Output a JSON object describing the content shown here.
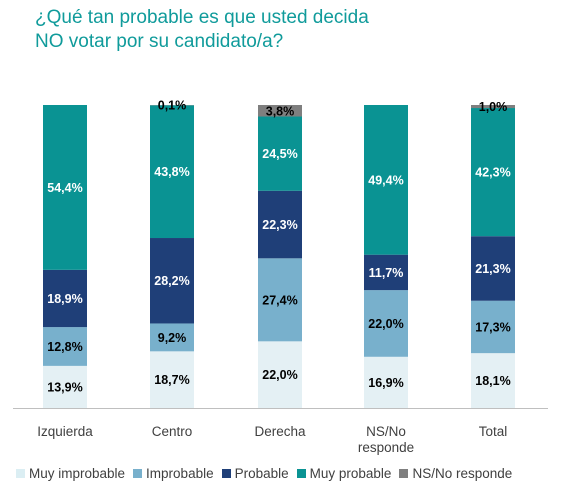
{
  "title_lines": [
    "¿Qué tan probable es que usted decida",
    "NO votar por su candidato/a?"
  ],
  "colors": {
    "Muy improbable": "#e4f0f4",
    "Improbable": "#78b0cc",
    "Probable": "#1f3f78",
    "Muy probable": "#0a9393",
    "NS/No responde": "#7f7f7f",
    "axis": "#bfbfbf",
    "text": "#404040"
  },
  "chart_data": {
    "type": "bar",
    "stacked": true,
    "categories": [
      "Izquierda",
      "Centro",
      "Derecha",
      "NS/No responde",
      "Total"
    ],
    "category_lines": [
      [
        "Izquierda"
      ],
      [
        "Centro"
      ],
      [
        "Derecha"
      ],
      [
        "NS/No",
        "responde"
      ],
      [
        "Total"
      ]
    ],
    "series": [
      {
        "name": "Muy improbable",
        "values": [
          13.9,
          18.7,
          22.0,
          16.9,
          18.1
        ],
        "labels": [
          "13,9%",
          "18,7%",
          "22,0%",
          "16,9%",
          "18,1%"
        ]
      },
      {
        "name": "Improbable",
        "values": [
          12.8,
          9.2,
          27.4,
          22.0,
          17.3
        ],
        "labels": [
          "12,8%",
          "9,2%",
          "27,4%",
          "22,0%",
          "17,3%"
        ]
      },
      {
        "name": "Probable",
        "values": [
          18.9,
          28.2,
          22.3,
          11.7,
          21.3
        ],
        "labels": [
          "18,9%",
          "28,2%",
          "22,3%",
          "11,7%",
          "21,3%"
        ]
      },
      {
        "name": "Muy probable",
        "values": [
          54.4,
          43.8,
          24.5,
          49.4,
          42.3
        ],
        "labels": [
          "54,4%",
          "43,8%",
          "24,5%",
          "49,4%",
          "42,3%"
        ]
      },
      {
        "name": "NS/No responde",
        "values": [
          0,
          0.1,
          3.8,
          0,
          1.0
        ],
        "labels": [
          "",
          "0,1%",
          "3,8%",
          "",
          "1,0%"
        ]
      }
    ],
    "ylim": [
      0,
      100
    ],
    "legend_position": "bottom",
    "grid": false
  }
}
